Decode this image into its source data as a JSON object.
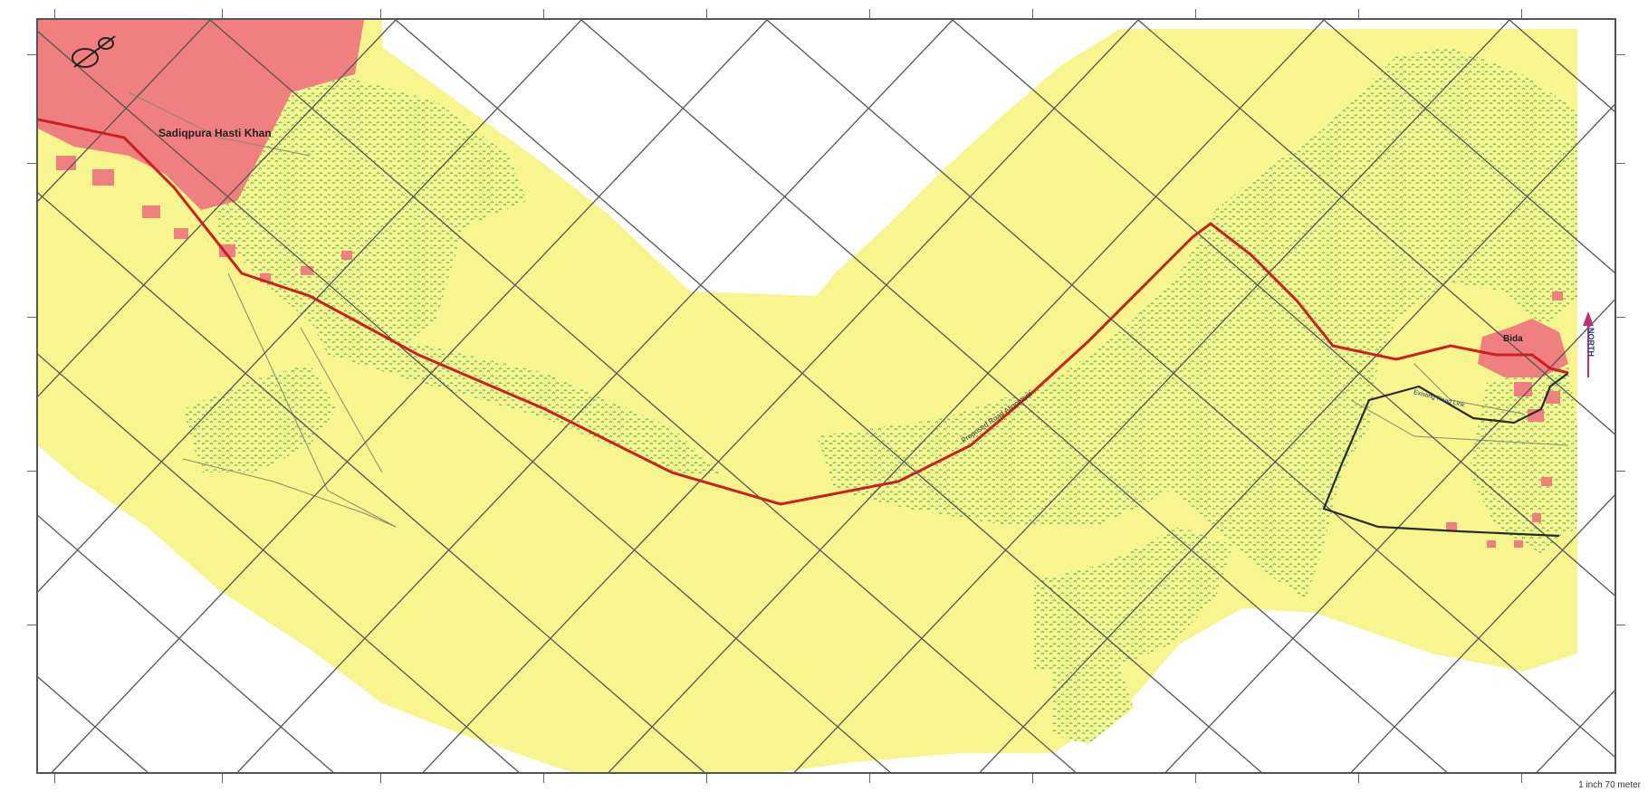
{
  "map": {
    "places": {
      "start_village": "Sadiqpura Hasti Khan",
      "end_village": "Bida"
    },
    "road_labels": {
      "main_road": "Proposed Road Alignment",
      "spur_road": "Existing Road Link"
    },
    "north_arrow_label": "NORTH",
    "scale_text": "1 inch 70 meter",
    "colors": {
      "agriculture": "#f6f58e",
      "settlement": "#f07f7f",
      "vegetation": "#7fcf7f",
      "proposed_road": "#cc1f1f",
      "existing_road": "#2a2a2a",
      "grid": "#555555",
      "north_arrow": "#c0307a"
    }
  }
}
